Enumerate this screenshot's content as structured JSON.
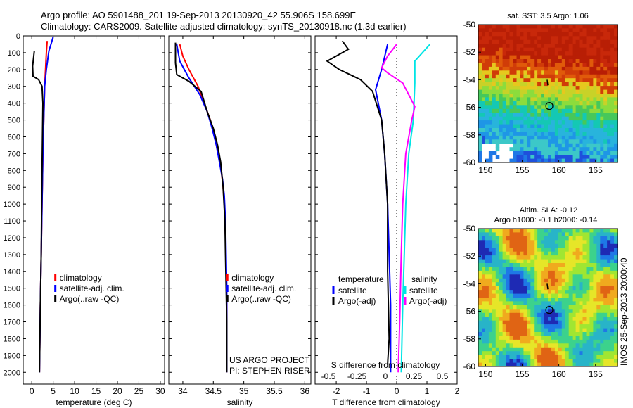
{
  "header": {
    "line1": "Argo profile: AO 5901488_201 19-Sep-2013 20130920_42 55.906S 158.699E",
    "line2": "Climatology: CARS2009. Satellite-adjusted climatology: synTS_20130918.nc (1.3d earlier)"
  },
  "colors": {
    "climatology": "#ff0000",
    "satellite": "#0000ff",
    "argo": "#000000",
    "cyan": "#00e5e5",
    "magenta": "#ff00ff"
  },
  "chart_data": [
    {
      "type": "line",
      "id": "temperature",
      "xlabel": "temperature (deg C)",
      "xlim": [
        -2,
        31
      ],
      "xticks": [
        0,
        5,
        10,
        15,
        20,
        25,
        30
      ],
      "ylim": [
        2070,
        0
      ],
      "yticks": [
        0,
        100,
        200,
        300,
        400,
        500,
        600,
        700,
        800,
        900,
        1000,
        1100,
        1200,
        1300,
        1400,
        1500,
        1600,
        1700,
        1800,
        1900,
        2000
      ],
      "legend": [
        "climatology",
        "satellite-adj. clim.",
        "Argo(..raw -QC)"
      ],
      "series": [
        {
          "name": "climatology",
          "color": "red",
          "points": [
            [
              3.6,
              30
            ],
            [
              3.4,
              100
            ],
            [
              3.2,
              200
            ],
            [
              3.0,
              300
            ],
            [
              2.8,
              500
            ],
            [
              2.6,
              700
            ],
            [
              2.4,
              1000
            ],
            [
              2.2,
              1300
            ],
            [
              2.0,
              1600
            ],
            [
              1.8,
              2000
            ]
          ]
        },
        {
          "name": "satellite-adj. clim.",
          "color": "blue",
          "points": [
            [
              5.0,
              5
            ],
            [
              4.6,
              40
            ],
            [
              4.0,
              90
            ],
            [
              3.4,
              200
            ],
            [
              3.0,
              300
            ],
            [
              2.8,
              500
            ],
            [
              2.6,
              700
            ],
            [
              2.4,
              1000
            ],
            [
              2.2,
              1300
            ],
            [
              2.0,
              1600
            ],
            [
              1.8,
              2000
            ]
          ]
        },
        {
          "name": "Argo(..raw -QC)",
          "color": "black",
          "points": [
            [
              0.6,
              90
            ],
            [
              0.2,
              180
            ],
            [
              0.3,
              240
            ],
            [
              1.6,
              260
            ],
            [
              2.4,
              300
            ],
            [
              2.6,
              400
            ],
            [
              2.5,
              600
            ],
            [
              2.4,
              800
            ],
            [
              2.3,
              1000
            ],
            [
              2.2,
              1300
            ],
            [
              2.0,
              1600
            ],
            [
              1.8,
              2000
            ]
          ]
        }
      ]
    },
    {
      "type": "line",
      "id": "salinity",
      "xlabel": "salinity",
      "xlim": [
        33.77,
        36.1
      ],
      "xticks": [
        34,
        34.5,
        35,
        35.5,
        36
      ],
      "ylim": [
        2070,
        0
      ],
      "legend": [
        "climatology",
        "satellite-adj. clim.",
        "Argo(..raw -QC)"
      ],
      "annotations": [
        "US ARGO PROJECT",
        "PI: STEPHEN RISER"
      ],
      "series": [
        {
          "name": "climatology",
          "color": "red",
          "points": [
            [
              33.95,
              50
            ],
            [
              34.0,
              120
            ],
            [
              34.1,
              200
            ],
            [
              34.25,
              300
            ],
            [
              34.35,
              400
            ],
            [
              34.45,
              500
            ],
            [
              34.52,
              600
            ],
            [
              34.58,
              700
            ],
            [
              34.63,
              800
            ],
            [
              34.66,
              900
            ],
            [
              34.68,
              1000
            ],
            [
              34.7,
              1200
            ],
            [
              34.71,
              1400
            ],
            [
              34.72,
              1600
            ],
            [
              34.72,
              2000
            ]
          ]
        },
        {
          "name": "satellite-adj. clim.",
          "color": "blue",
          "points": [
            [
              33.9,
              50
            ],
            [
              33.95,
              150
            ],
            [
              34.1,
              250
            ],
            [
              34.28,
              350
            ],
            [
              34.4,
              450
            ],
            [
              34.48,
              550
            ],
            [
              34.55,
              650
            ],
            [
              34.6,
              750
            ],
            [
              34.65,
              850
            ],
            [
              34.68,
              950
            ],
            [
              34.7,
              1100
            ],
            [
              34.71,
              1300
            ],
            [
              34.72,
              1500
            ],
            [
              34.72,
              2000
            ]
          ]
        },
        {
          "name": "Argo(..raw -QC)",
          "color": "black",
          "points": [
            [
              33.88,
              40
            ],
            [
              33.88,
              160
            ],
            [
              33.9,
              230
            ],
            [
              34.1,
              270
            ],
            [
              34.3,
              330
            ],
            [
              34.4,
              450
            ],
            [
              34.5,
              550
            ],
            [
              34.57,
              650
            ],
            [
              34.62,
              750
            ],
            [
              34.66,
              900
            ],
            [
              34.69,
              1100
            ],
            [
              34.7,
              1300
            ],
            [
              34.71,
              1500
            ],
            [
              34.72,
              1700
            ],
            [
              34.72,
              2000
            ]
          ]
        }
      ]
    },
    {
      "type": "line",
      "id": "difference",
      "xlabel": "T difference from climatology",
      "xlabel_top": "S difference from climatology",
      "xlim": [
        -2.7,
        2.0
      ],
      "xticks": [
        -2,
        -1,
        0,
        1,
        2
      ],
      "xticks_top": [
        -0.5,
        -0.25,
        0,
        0.25,
        0.5
      ],
      "xticklabels_top": [
        "-0.5",
        "-0.25",
        "0",
        "0.25",
        "0.5"
      ],
      "ylim": [
        2070,
        0
      ],
      "legend_t_title": "temperature",
      "legend_s_title": "salinity",
      "legend_t": [
        "satellite",
        "Argo(-adj)"
      ],
      "legend_s": [
        "satellite",
        "Argo(-adj)"
      ],
      "series": [
        {
          "name": "T satellite",
          "color": "blue",
          "points": [
            [
              -0.3,
              50
            ],
            [
              -0.5,
              200
            ],
            [
              -0.7,
              320
            ],
            [
              -0.5,
              500
            ],
            [
              -0.4,
              700
            ],
            [
              -0.3,
              1000
            ],
            [
              -0.25,
              1300
            ],
            [
              -0.2,
              1600
            ],
            [
              -0.2,
              2000
            ]
          ]
        },
        {
          "name": "T Argo(-adj)",
          "color": "black",
          "points": [
            [
              -1.8,
              30
            ],
            [
              -1.6,
              80
            ],
            [
              -2.3,
              150
            ],
            [
              -1.9,
              200
            ],
            [
              -1.2,
              260
            ],
            [
              -0.8,
              330
            ],
            [
              -0.5,
              500
            ],
            [
              -0.4,
              700
            ],
            [
              -0.3,
              1000
            ],
            [
              -0.3,
              1400
            ],
            [
              -0.25,
              1800
            ],
            [
              -0.3,
              1950
            ]
          ]
        },
        {
          "name": "S satellite",
          "color": "cyan",
          "points": [
            [
              1.1,
              50
            ],
            [
              0.6,
              150
            ],
            [
              0.6,
              280
            ],
            [
              0.55,
              500
            ],
            [
              0.4,
              700
            ],
            [
              0.3,
              1000
            ],
            [
              0.25,
              1300
            ],
            [
              0.2,
              1600
            ],
            [
              0.15,
              2000
            ]
          ]
        },
        {
          "name": "S Argo(-adj)",
          "color": "magenta",
          "points": [
            [
              0.0,
              50
            ],
            [
              -0.3,
              120
            ],
            [
              -0.5,
              190
            ],
            [
              -0.3,
              220
            ],
            [
              0.2,
              280
            ],
            [
              0.4,
              350
            ],
            [
              0.6,
              420
            ],
            [
              0.5,
              500
            ],
            [
              0.3,
              700
            ],
            [
              0.2,
              1000
            ],
            [
              0.15,
              1300
            ],
            [
              0.1,
              1700
            ],
            [
              0.05,
              2000
            ]
          ]
        }
      ]
    },
    {
      "type": "heatmap",
      "id": "sst-map",
      "title": "sat. SST: 3.5 Argo: 1.06",
      "xticks": [
        150,
        155,
        160,
        165
      ],
      "yticks": [
        -50,
        -52,
        -54,
        -56,
        -58,
        -60
      ],
      "xlim": [
        149,
        168
      ],
      "ylim": [
        -60,
        -50
      ],
      "marker": {
        "lon": 158.7,
        "lat": -55.9
      }
    },
    {
      "type": "heatmap",
      "id": "sla-map",
      "title": "Altim. SLA: -0.12",
      "subtitle": "Argo h1000: -0.1 h2000: -0.14",
      "xticks": [
        150,
        155,
        160,
        165
      ],
      "yticks": [
        -50,
        -52,
        -54,
        -56,
        -58,
        -60
      ],
      "xlim": [
        149,
        168
      ],
      "ylim": [
        -60,
        -50
      ],
      "marker": {
        "lon": 158.7,
        "lat": -55.9
      },
      "side_label": "IMOS 25-Sep-2013 20:00:40"
    }
  ]
}
